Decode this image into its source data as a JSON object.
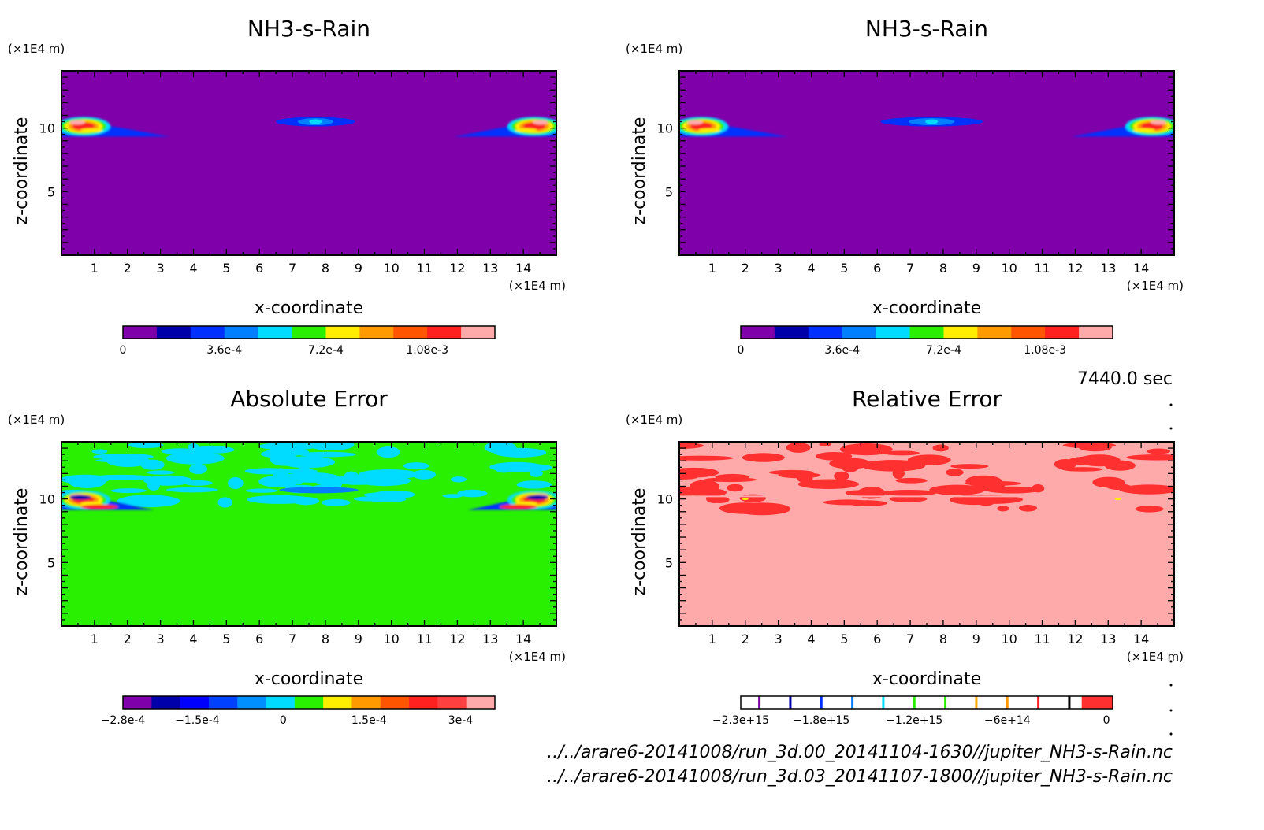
{
  "figure": {
    "time_label": "7440.0 sec",
    "footer_lines": [
      "../../arare6-20141008/run_3d.00_20141104-1630//jupiter_NH3-s-Rain.nc",
      "../../arare6-20141008/run_3d.03_20141107-1800//jupiter_NH3-s-Rain.nc"
    ],
    "right_dots_count": 6
  },
  "chart_data": [
    {
      "type": "heatmap",
      "title": "NH3-s-Rain",
      "xlabel": "x-coordinate",
      "ylabel": "z-coordinate",
      "x_unit": "(×1E4 m)",
      "y_unit": "(×1E4 m)",
      "xlim": [
        0,
        15
      ],
      "ylim": [
        0,
        14.5
      ],
      "x_ticks": [
        1,
        2,
        3,
        4,
        5,
        6,
        7,
        8,
        9,
        10,
        11,
        12,
        13,
        14
      ],
      "y_ticks": [
        5,
        10
      ],
      "background": "#7f00aa",
      "features": [
        {
          "shape": "left-plume",
          "x_range": [
            0,
            3.3
          ],
          "z_center": 10.2
        },
        {
          "shape": "center-blob",
          "x_range": [
            6.5,
            8.9
          ],
          "z_center": 10.5
        },
        {
          "shape": "right-plume",
          "x_range": [
            11.9,
            15
          ],
          "z_center": 10.2
        }
      ],
      "colorbar": {
        "colors": [
          "#7f00aa",
          "#0000aa",
          "#0030ff",
          "#0080ff",
          "#00dcff",
          "#28f000",
          "#ffee00",
          "#ff9a00",
          "#ff5500",
          "#ff2020",
          "#ffaaaa"
        ],
        "tick_labels": [
          "0",
          "3.6e-4",
          "7.2e-4",
          "1.08e-3"
        ],
        "tick_positions": [
          0,
          3,
          6,
          9
        ]
      }
    },
    {
      "type": "heatmap",
      "title": "NH3-s-Rain",
      "xlabel": "x-coordinate",
      "ylabel": "z-coordinate",
      "x_unit": "(×1E4 m)",
      "y_unit": "(×1E4 m)",
      "xlim": [
        0,
        15
      ],
      "ylim": [
        0,
        14.5
      ],
      "x_ticks": [
        1,
        2,
        3,
        4,
        5,
        6,
        7,
        8,
        9,
        10,
        11,
        12,
        13,
        14
      ],
      "y_ticks": [
        5,
        10
      ],
      "background": "#7f00aa",
      "features": [
        {
          "shape": "left-plume",
          "x_range": [
            0,
            3.3
          ],
          "z_center": 10.2
        },
        {
          "shape": "center-blob",
          "x_range": [
            6.1,
            9.2
          ],
          "z_center": 10.5
        },
        {
          "shape": "right-plume",
          "x_range": [
            11.9,
            15
          ],
          "z_center": 10.2
        }
      ],
      "colorbar": {
        "colors": [
          "#7f00aa",
          "#0000aa",
          "#0030ff",
          "#0080ff",
          "#00dcff",
          "#28f000",
          "#ffee00",
          "#ff9a00",
          "#ff5500",
          "#ff2020",
          "#ffaaaa"
        ],
        "tick_labels": [
          "0",
          "3.6e-4",
          "7.2e-4",
          "1.08e-3"
        ],
        "tick_positions": [
          0,
          3,
          6,
          9
        ]
      }
    },
    {
      "type": "heatmap",
      "title": "Absolute Error",
      "xlabel": "x-coordinate",
      "ylabel": "z-coordinate",
      "x_unit": "(×1E4 m)",
      "y_unit": "(×1E4 m)",
      "xlim": [
        0,
        15
      ],
      "ylim": [
        0,
        14.5
      ],
      "x_ticks": [
        1,
        2,
        3,
        4,
        5,
        6,
        7,
        8,
        9,
        10,
        11,
        12,
        13,
        14
      ],
      "y_ticks": [
        5,
        10
      ],
      "background": "#28f000",
      "features": [
        {
          "shape": "noise-band",
          "z_range": [
            9.6,
            14.3
          ],
          "color": "#00dcff"
        },
        {
          "shape": "left-plume",
          "x_range": [
            0,
            2.8
          ],
          "z_center": 10.0
        },
        {
          "shape": "right-plume",
          "x_range": [
            12.3,
            15
          ],
          "z_center": 10.0
        }
      ],
      "colorbar": {
        "colors": [
          "#7f00aa",
          "#0000aa",
          "#0000ff",
          "#0040ff",
          "#0090ff",
          "#00dcff",
          "#28f000",
          "#ffee00",
          "#ff9a00",
          "#ff5500",
          "#ff2020",
          "#ff4040",
          "#ffaaaa"
        ],
        "tick_labels": [
          "−2.8e-4",
          "−1.5e-4",
          "0",
          "1.5e-4",
          "3e-4"
        ],
        "tick_positions": [
          0,
          2.6,
          5.6,
          8.6,
          11.8
        ]
      }
    },
    {
      "type": "heatmap",
      "title": "Relative Error",
      "xlabel": "x-coordinate",
      "ylabel": "z-coordinate",
      "x_unit": "(×1E4 m)",
      "y_unit": "(×1E4 m)",
      "xlim": [
        0,
        15
      ],
      "ylim": [
        0,
        14.5
      ],
      "x_ticks": [
        1,
        2,
        3,
        4,
        5,
        6,
        7,
        8,
        9,
        10,
        11,
        12,
        13,
        14
      ],
      "y_ticks": [
        5,
        10
      ],
      "background": "#ffaaaa",
      "features": [
        {
          "shape": "noise-band",
          "z_range": [
            9.2,
            14.3
          ],
          "color": "#ff3030"
        }
      ],
      "colorbar": {
        "colors": [
          "#ffffff",
          "#ffffff",
          "#ffffff",
          "#ffffff",
          "#ffffff",
          "#ffffff",
          "#ffffff",
          "#ffffff",
          "#ffffff",
          "#ffffff",
          "#ffffff",
          "#ff3030"
        ],
        "divider_colors": [
          "#7f00aa",
          "#0000aa",
          "#0030ff",
          "#0080ff",
          "#00dcff",
          "#28f000",
          "#28f000",
          "#ffaa00",
          "#ff9a00",
          "#ff2020",
          "#000000"
        ],
        "tick_labels": [
          "−2.3e+15",
          "−1.8e+15",
          "−1.2e+15",
          "−6e+14",
          "0"
        ],
        "tick_positions": [
          0,
          2.6,
          5.6,
          8.6,
          11.8
        ]
      }
    }
  ]
}
